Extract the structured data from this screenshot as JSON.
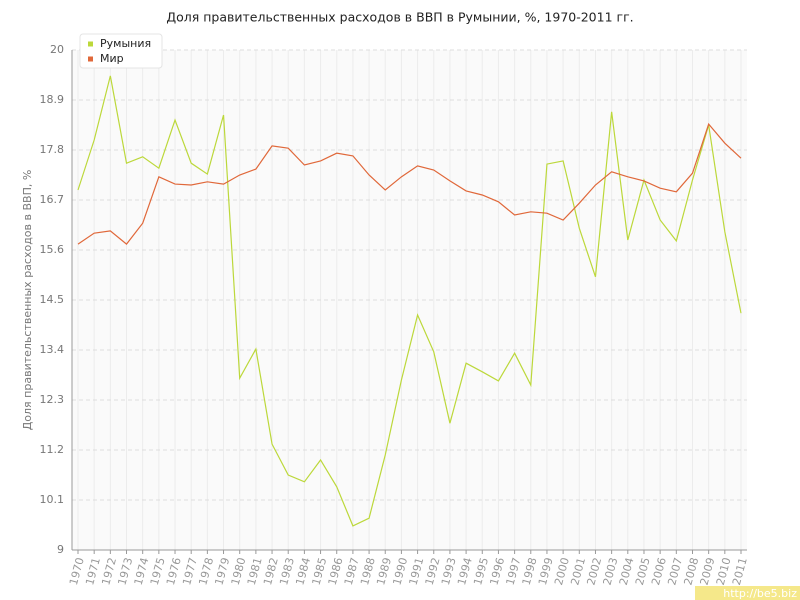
{
  "chart_data": {
    "type": "line",
    "title": "Доля правительственных расходов в ВВП в Румынии, %, 1970-2011 гг.",
    "y_label": "Доля правительственных расходов в ВВП, %",
    "watermark": "http://be5.biz",
    "x": [
      1970,
      1971,
      1972,
      1973,
      1974,
      1975,
      1976,
      1977,
      1978,
      1979,
      1980,
      1981,
      1982,
      1983,
      1984,
      1985,
      1986,
      1987,
      1988,
      1989,
      1990,
      1991,
      1992,
      1993,
      1994,
      1995,
      1996,
      1997,
      1998,
      1999,
      2000,
      2001,
      2002,
      2003,
      2004,
      2005,
      2006,
      2007,
      2008,
      2009,
      2010,
      2011
    ],
    "xlim": [
      1970,
      2011
    ],
    "series": [
      {
        "name": "Румыния",
        "color": "#bcd83a",
        "values": [
          16.92,
          18.02,
          19.43,
          17.51,
          17.65,
          17.4,
          18.46,
          17.51,
          17.27,
          18.57,
          12.78,
          13.42,
          11.33,
          10.65,
          10.5,
          10.98,
          10.39,
          9.53,
          9.7,
          11.09,
          12.74,
          14.17,
          13.36,
          11.79,
          13.11,
          12.92,
          12.72,
          13.33,
          12.63,
          17.49,
          17.56,
          16.08,
          15.01,
          18.64,
          15.82,
          17.14,
          16.26,
          15.8,
          17.14,
          18.35,
          16.0,
          14.21
        ]
      },
      {
        "name": "Мир",
        "color": "#e0683a",
        "values": [
          15.73,
          15.97,
          16.02,
          15.73,
          16.19,
          17.21,
          17.05,
          17.03,
          17.1,
          17.05,
          17.25,
          17.38,
          17.89,
          17.84,
          17.47,
          17.56,
          17.73,
          17.67,
          17.25,
          16.92,
          17.21,
          17.45,
          17.36,
          17.12,
          16.9,
          16.81,
          16.66,
          16.37,
          16.44,
          16.41,
          16.26,
          16.63,
          17.03,
          17.32,
          17.21,
          17.12,
          16.96,
          16.88,
          17.29,
          18.37,
          17.95,
          17.62
        ]
      }
    ],
    "ylim": [
      9,
      20
    ],
    "yticks": [
      9,
      10.1,
      11.2,
      12.3,
      13.4,
      14.5,
      15.6,
      16.7,
      17.8,
      18.9,
      20
    ],
    "grid": true,
    "legend": "top-left"
  }
}
